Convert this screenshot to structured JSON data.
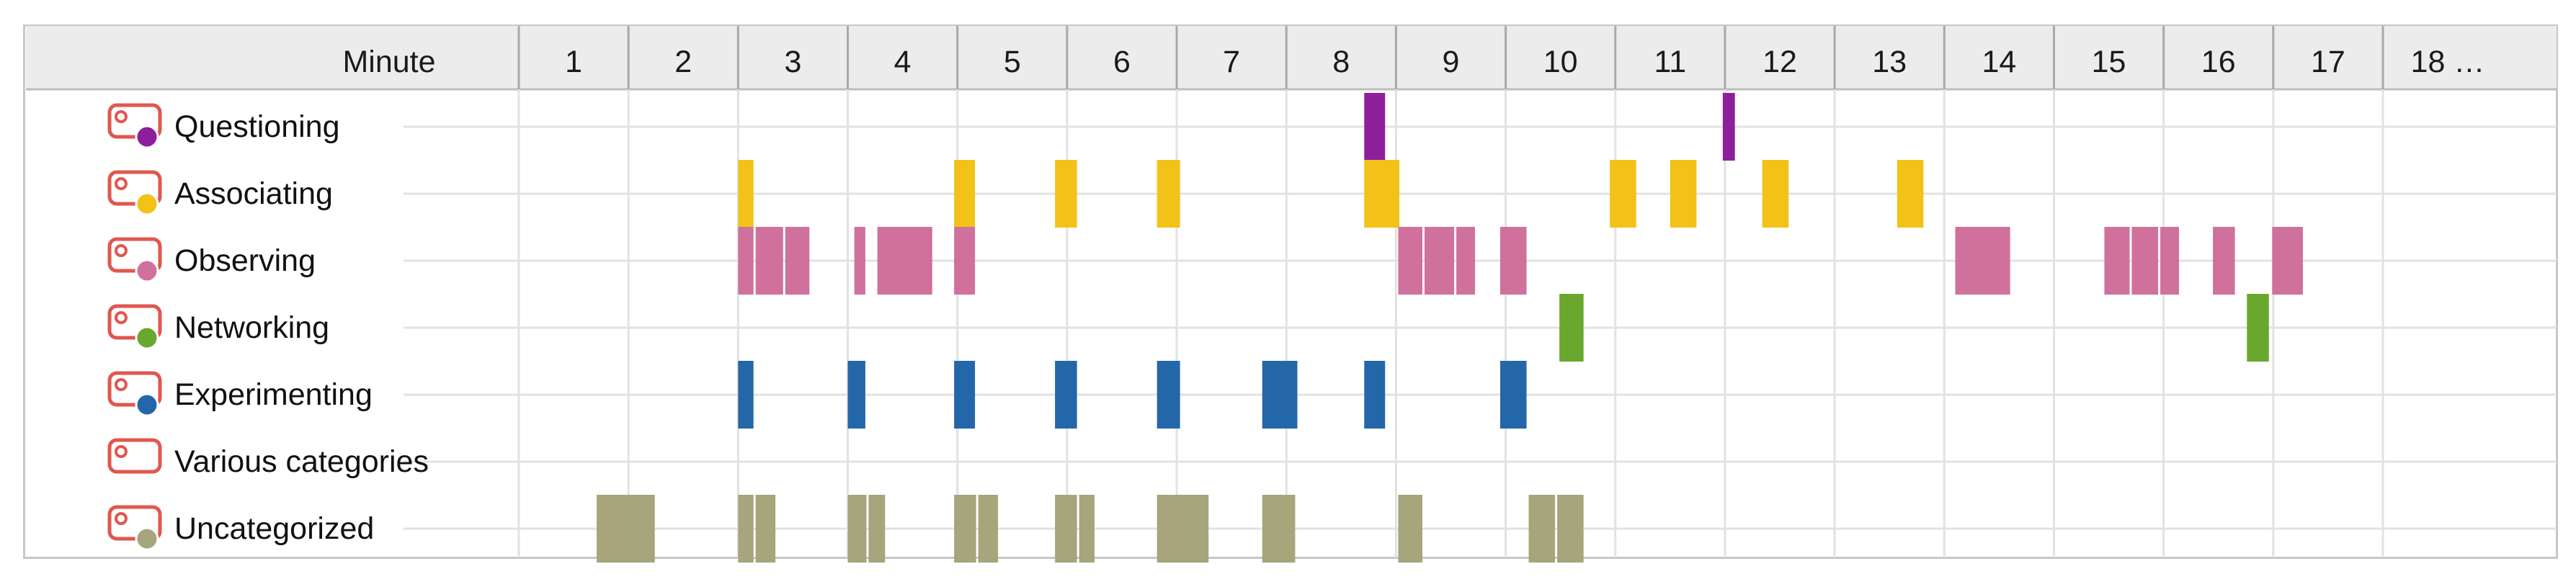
{
  "chart_data": {
    "type": "timeline",
    "header": {
      "label": "Minute"
    },
    "minutes": [
      "1",
      "2",
      "3",
      "4",
      "5",
      "6",
      "7",
      "8",
      "9",
      "10",
      "11",
      "12",
      "13",
      "14",
      "15",
      "16",
      "17",
      "18 …"
    ],
    "colors": {
      "header_bg": "#ececec",
      "grid": "#e2e2e2",
      "icon": "#e0574f"
    },
    "series": [
      {
        "name": "Questioning",
        "color": "#8e1f9c",
        "segments": [
          [
            7.71,
            7.92
          ],
          [
            10.98,
            11.11
          ]
        ]
      },
      {
        "name": "Associating",
        "color": "#f2c218",
        "segments": [
          [
            2.0,
            2.16
          ],
          [
            3.97,
            4.18
          ],
          [
            4.89,
            5.11
          ],
          [
            5.82,
            6.05
          ],
          [
            7.71,
            8.05
          ],
          [
            9.95,
            10.21
          ],
          [
            10.5,
            10.76
          ],
          [
            11.34,
            11.6
          ],
          [
            12.57,
            12.83
          ]
        ]
      },
      {
        "name": "Observing",
        "color": "#d0709c",
        "segments": [
          [
            2.0,
            2.16
          ],
          [
            2.16,
            2.43
          ],
          [
            2.43,
            2.67
          ],
          [
            3.06,
            3.18
          ],
          [
            3.27,
            3.79
          ],
          [
            3.97,
            4.18
          ],
          [
            8.02,
            8.26
          ],
          [
            8.26,
            8.55
          ],
          [
            8.55,
            8.74
          ],
          [
            8.95,
            9.21
          ],
          [
            13.27,
            13.62
          ],
          [
            13.1,
            13.35
          ],
          [
            14.46,
            14.71
          ],
          [
            14.71,
            14.97
          ],
          [
            14.97,
            15.16
          ],
          [
            15.45,
            15.67
          ],
          [
            15.99,
            16.29
          ]
        ]
      },
      {
        "name": "Networking",
        "color": "#6aa72d",
        "segments": [
          [
            9.49,
            9.73
          ],
          [
            15.76,
            15.98
          ]
        ]
      },
      {
        "name": "Experimenting",
        "color": "#2467a8",
        "segments": [
          [
            2.0,
            2.16
          ],
          [
            3.0,
            3.18
          ],
          [
            3.97,
            4.18
          ],
          [
            4.89,
            5.11
          ],
          [
            5.82,
            6.05
          ],
          [
            6.78,
            7.12
          ],
          [
            7.71,
            7.92
          ],
          [
            8.95,
            9.21
          ]
        ]
      },
      {
        "name": "Various categories",
        "color": "#e0574f",
        "segments": []
      },
      {
        "name": "Uncategorized",
        "color": "#a6a57b",
        "segments": [
          [
            0.71,
            1.26
          ],
          [
            2.0,
            2.16
          ],
          [
            2.16,
            2.36
          ],
          [
            3.0,
            3.19
          ],
          [
            3.19,
            3.36
          ],
          [
            3.97,
            4.19
          ],
          [
            4.19,
            4.39
          ],
          [
            4.89,
            5.11
          ],
          [
            5.11,
            5.27
          ],
          [
            5.82,
            6.31
          ],
          [
            6.78,
            7.1
          ],
          [
            8.02,
            8.26
          ],
          [
            9.21,
            9.47
          ],
          [
            9.47,
            9.73
          ]
        ]
      }
    ]
  }
}
